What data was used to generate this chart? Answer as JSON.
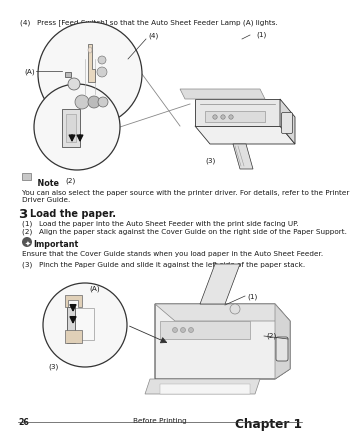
{
  "page_number": "26",
  "center_footer": "Before Printing",
  "right_footer": "Chapter 1",
  "bg": "#ffffff",
  "tc": "#1a1a1a",
  "gray1": "#aaaaaa",
  "gray2": "#cccccc",
  "gray3": "#e8e8e8",
  "gray4": "#555555",
  "step4_text": "(4)   Press [Feed Switch] so that the Auto Sheet Feeder Lamp (A) lights.",
  "note_body1": "You can also select the paper source with the printer driver. For details, refer to the Printer",
  "note_body2": "Driver Guide.",
  "step3_num": "3",
  "step3_title": "Load the paper.",
  "s31": "(1)   Load the paper into the Auto Sheet Feeder with the print side facing UP.",
  "s32": "(2)   Align the paper stack against the Cover Guide on the right side of the Paper Support.",
  "imp_title": "Important",
  "imp_body": "Ensure that the Cover Guide stands when you load paper in the Auto Sheet Feeder.",
  "s33": "(3)   Pinch the Paper Guide and slide it against the left side of the paper stack.",
  "fs": 5.2,
  "fs_step": 9.5,
  "fs_title": 7.0,
  "fs_footer": 5.2,
  "fs_note_hd": 5.8,
  "fs_imp_hd": 5.8
}
